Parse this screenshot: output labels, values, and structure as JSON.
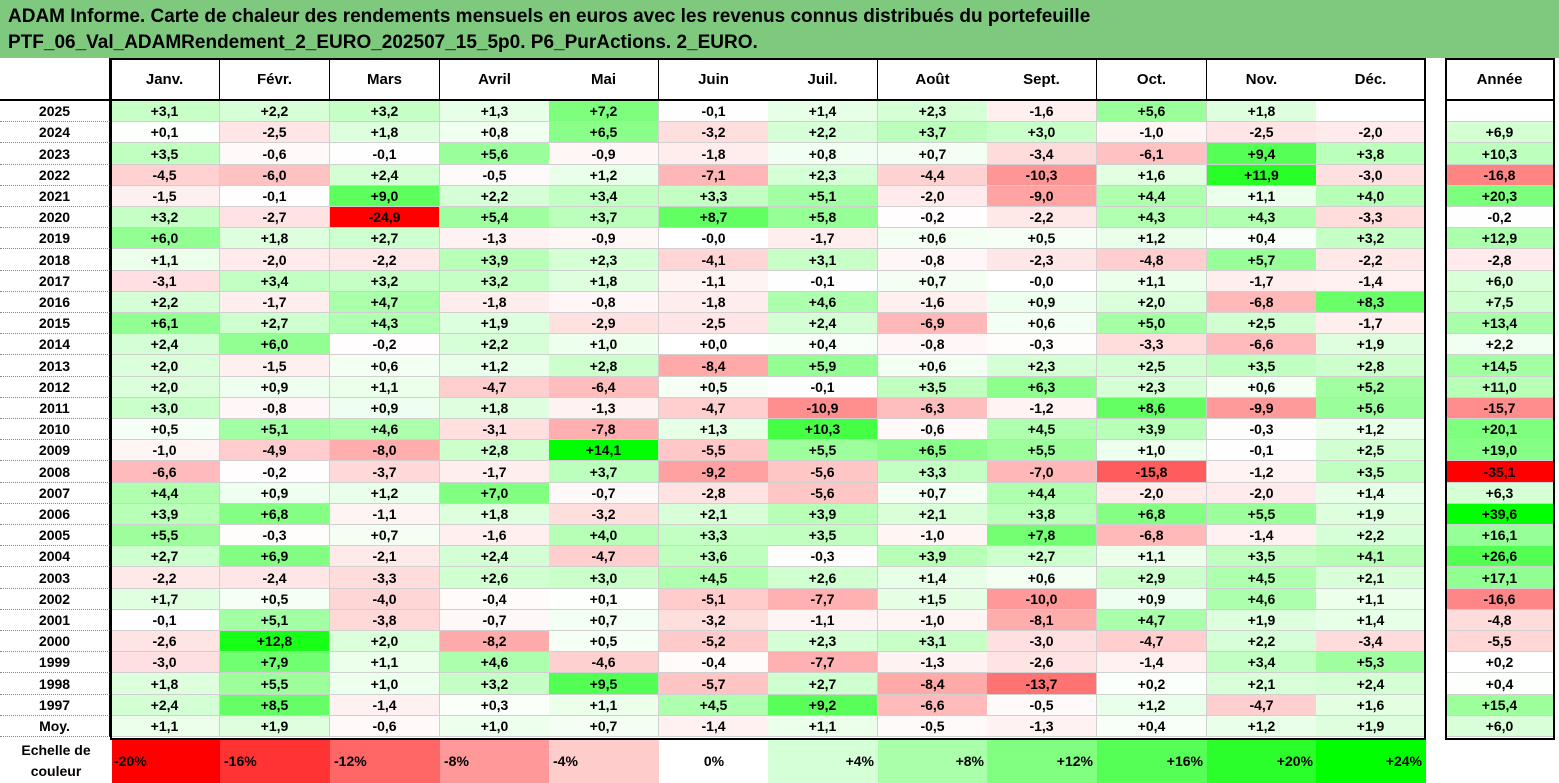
{
  "title": {
    "line1": "ADAM Informe. Carte de chaleur des rendements mensuels en euros avec les revenus connus distribués du portefeuille",
    "line2": "PTF_06_Val_ADAMRendement_2_EURO_202507_15_5p0. P6_PurActions. 2_EURO."
  },
  "chart_data": {
    "type": "heatmap",
    "columns": [
      "Janv.",
      "Févr.",
      "Mars",
      "Avril",
      "Mai",
      "Juin",
      "Juil.",
      "Août",
      "Sept.",
      "Oct.",
      "Nov.",
      "Déc."
    ],
    "year_column": "Année",
    "rows": [
      {
        "year": "2025",
        "months": [
          "+3,1",
          "+2,2",
          "+3,2",
          "+1,3",
          "+7,2",
          "-0,1",
          "+1,4",
          "+2,3",
          "-1,6",
          "+5,6",
          "+1,8",
          ""
        ],
        "annual": ""
      },
      {
        "year": "2024",
        "months": [
          "+0,1",
          "-2,5",
          "+1,8",
          "+0,8",
          "+6,5",
          "-3,2",
          "+2,2",
          "+3,7",
          "+3,0",
          "-1,0",
          "-2,5",
          "-2,0"
        ],
        "annual": "+6,9"
      },
      {
        "year": "2023",
        "months": [
          "+3,5",
          "-0,6",
          "-0,1",
          "+5,6",
          "-0,9",
          "-1,8",
          "+0,8",
          "+0,7",
          "-3,4",
          "-6,1",
          "+9,4",
          "+3,8"
        ],
        "annual": "+10,3"
      },
      {
        "year": "2022",
        "months": [
          "-4,5",
          "-6,0",
          "+2,4",
          "-0,5",
          "+1,2",
          "-7,1",
          "+2,3",
          "-4,4",
          "-10,3",
          "+1,6",
          "+11,9",
          "-3,0"
        ],
        "annual": "-16,8"
      },
      {
        "year": "2021",
        "months": [
          "-1,5",
          "-0,1",
          "+9,0",
          "+2,2",
          "+3,4",
          "+3,3",
          "+5,1",
          "-2,0",
          "-9,0",
          "+4,4",
          "+1,1",
          "+4,0"
        ],
        "annual": "+20,3"
      },
      {
        "year": "2020",
        "months": [
          "+3,2",
          "-2,7",
          "-24,9",
          "+5,4",
          "+3,7",
          "+8,7",
          "+5,8",
          "-0,2",
          "-2,2",
          "+4,3",
          "+4,3",
          "-3,3"
        ],
        "annual": "-0,2"
      },
      {
        "year": "2019",
        "months": [
          "+6,0",
          "+1,8",
          "+2,7",
          "-1,3",
          "-0,9",
          "-0,0",
          "-1,7",
          "+0,6",
          "+0,5",
          "+1,2",
          "+0,4",
          "+3,2"
        ],
        "annual": "+12,9"
      },
      {
        "year": "2018",
        "months": [
          "+1,1",
          "-2,0",
          "-2,2",
          "+3,9",
          "+2,3",
          "-4,1",
          "+3,1",
          "-0,8",
          "-2,3",
          "-4,8",
          "+5,7",
          "-2,2"
        ],
        "annual": "-2,8"
      },
      {
        "year": "2017",
        "months": [
          "-3,1",
          "+3,4",
          "+3,2",
          "+3,2",
          "+1,8",
          "-1,1",
          "-0,1",
          "+0,7",
          "-0,0",
          "+1,1",
          "-1,7",
          "-1,4"
        ],
        "annual": "+6,0"
      },
      {
        "year": "2016",
        "months": [
          "+2,2",
          "-1,7",
          "+4,7",
          "-1,8",
          "-0,8",
          "-1,8",
          "+4,6",
          "-1,6",
          "+0,9",
          "+2,0",
          "-6,8",
          "+8,3"
        ],
        "annual": "+7,5"
      },
      {
        "year": "2015",
        "months": [
          "+6,1",
          "+2,7",
          "+4,3",
          "+1,9",
          "-2,9",
          "-2,5",
          "+2,4",
          "-6,9",
          "+0,6",
          "+5,0",
          "+2,5",
          "-1,7"
        ],
        "annual": "+13,4"
      },
      {
        "year": "2014",
        "months": [
          "+2,4",
          "+6,0",
          "-0,2",
          "+2,2",
          "+1,0",
          "+0,0",
          "+0,4",
          "-0,8",
          "-0,3",
          "-3,3",
          "-6,6",
          "+1,9"
        ],
        "annual": "+2,2"
      },
      {
        "year": "2013",
        "months": [
          "+2,0",
          "-1,5",
          "+0,6",
          "+1,2",
          "+2,8",
          "-8,4",
          "+5,9",
          "+0,6",
          "+2,3",
          "+2,5",
          "+3,5",
          "+2,8"
        ],
        "annual": "+14,5"
      },
      {
        "year": "2012",
        "months": [
          "+2,0",
          "+0,9",
          "+1,1",
          "-4,7",
          "-6,4",
          "+0,5",
          "-0,1",
          "+3,5",
          "+6,3",
          "+2,3",
          "+0,6",
          "+5,2"
        ],
        "annual": "+11,0"
      },
      {
        "year": "2011",
        "months": [
          "+3,0",
          "-0,8",
          "+0,9",
          "+1,8",
          "-1,3",
          "-4,7",
          "-10,9",
          "-6,3",
          "-1,2",
          "+8,6",
          "-9,9",
          "+5,6"
        ],
        "annual": "-15,7"
      },
      {
        "year": "2010",
        "months": [
          "+0,5",
          "+5,1",
          "+4,6",
          "-3,1",
          "-7,8",
          "+1,3",
          "+10,3",
          "-0,6",
          "+4,5",
          "+3,9",
          "-0,3",
          "+1,2"
        ],
        "annual": "+20,1"
      },
      {
        "year": "2009",
        "months": [
          "-1,0",
          "-4,9",
          "-8,0",
          "+2,8",
          "+14,1",
          "-5,5",
          "+5,5",
          "+6,5",
          "+5,5",
          "+1,0",
          "-0,1",
          "+2,5"
        ],
        "annual": "+19,0"
      },
      {
        "year": "2008",
        "months": [
          "-6,6",
          "-0,2",
          "-3,7",
          "-1,7",
          "+3,7",
          "-9,2",
          "-5,6",
          "+3,3",
          "-7,0",
          "-15,8",
          "-1,2",
          "+3,5"
        ],
        "annual": "-35,1"
      },
      {
        "year": "2007",
        "months": [
          "+4,4",
          "+0,9",
          "+1,2",
          "+7,0",
          "-0,7",
          "-2,8",
          "-5,6",
          "+0,7",
          "+4,4",
          "-2,0",
          "-2,0",
          "+1,4"
        ],
        "annual": "+6,3"
      },
      {
        "year": "2006",
        "months": [
          "+3,9",
          "+6,8",
          "-1,1",
          "+1,8",
          "-3,2",
          "+2,1",
          "+3,9",
          "+2,1",
          "+3,8",
          "+6,8",
          "+5,5",
          "+1,9"
        ],
        "annual": "+39,6"
      },
      {
        "year": "2005",
        "months": [
          "+5,5",
          "-0,3",
          "+0,7",
          "-1,6",
          "+4,0",
          "+3,3",
          "+3,5",
          "-1,0",
          "+7,8",
          "-6,8",
          "-1,4",
          "+2,2"
        ],
        "annual": "+16,1"
      },
      {
        "year": "2004",
        "months": [
          "+2,7",
          "+6,9",
          "-2,1",
          "+2,4",
          "-4,7",
          "+3,6",
          "-0,3",
          "+3,9",
          "+2,7",
          "+1,1",
          "+3,5",
          "+4,1"
        ],
        "annual": "+26,6"
      },
      {
        "year": "2003",
        "months": [
          "-2,2",
          "-2,4",
          "-3,3",
          "+2,6",
          "+3,0",
          "+4,5",
          "+2,6",
          "+1,4",
          "+0,6",
          "+2,9",
          "+4,5",
          "+2,1"
        ],
        "annual": "+17,1"
      },
      {
        "year": "2002",
        "months": [
          "+1,7",
          "+0,5",
          "-4,0",
          "-0,4",
          "+0,1",
          "-5,1",
          "-7,7",
          "+1,5",
          "-10,0",
          "+0,9",
          "+4,6",
          "+1,1"
        ],
        "annual": "-16,6"
      },
      {
        "year": "2001",
        "months": [
          "-0,1",
          "+5,1",
          "-3,8",
          "-0,7",
          "+0,7",
          "-3,2",
          "-1,1",
          "-1,0",
          "-8,1",
          "+4,7",
          "+1,9",
          "+1,4"
        ],
        "annual": "-4,8"
      },
      {
        "year": "2000",
        "months": [
          "-2,6",
          "+12,8",
          "+2,0",
          "-8,2",
          "+0,5",
          "-5,2",
          "+2,3",
          "+3,1",
          "-3,0",
          "-4,7",
          "+2,2",
          "-3,4"
        ],
        "annual": "-5,5"
      },
      {
        "year": "1999",
        "months": [
          "-3,0",
          "+7,9",
          "+1,1",
          "+4,6",
          "-4,6",
          "-0,4",
          "-7,7",
          "-1,3",
          "-2,6",
          "-1,4",
          "+3,4",
          "+5,3"
        ],
        "annual": "+0,2"
      },
      {
        "year": "1998",
        "months": [
          "+1,8",
          "+5,5",
          "+1,0",
          "+3,2",
          "+9,5",
          "-5,7",
          "+2,7",
          "-8,4",
          "-13,7",
          "+0,2",
          "+2,1",
          "+2,4"
        ],
        "annual": "+0,4"
      },
      {
        "year": "1997",
        "months": [
          "+2,4",
          "+8,5",
          "-1,4",
          "+0,3",
          "+1,1",
          "+4,5",
          "+9,2",
          "-6,6",
          "-0,5",
          "+1,2",
          "-4,7",
          "+1,6"
        ],
        "annual": "+15,4"
      },
      {
        "year": "Moy.",
        "months": [
          "+1,1",
          "+1,9",
          "-0,6",
          "+1,0",
          "+0,7",
          "-1,4",
          "+1,1",
          "-0,5",
          "-1,3",
          "+0,4",
          "+1,2",
          "+1,9"
        ],
        "annual": "+6,0"
      }
    ],
    "legend": {
      "label": "Echelle de couleur",
      "stops": [
        "-20%",
        "-16%",
        "-12%",
        "-8%",
        "-4%",
        "0%",
        "+4%",
        "+8%",
        "+12%",
        "+16%",
        "+20%",
        "+24%"
      ]
    },
    "colors": {
      "negative_max": "#ff0000",
      "neutral": "#ffffff",
      "positive_max": "#00ff00",
      "title_bg": "#7fc97f"
    }
  }
}
